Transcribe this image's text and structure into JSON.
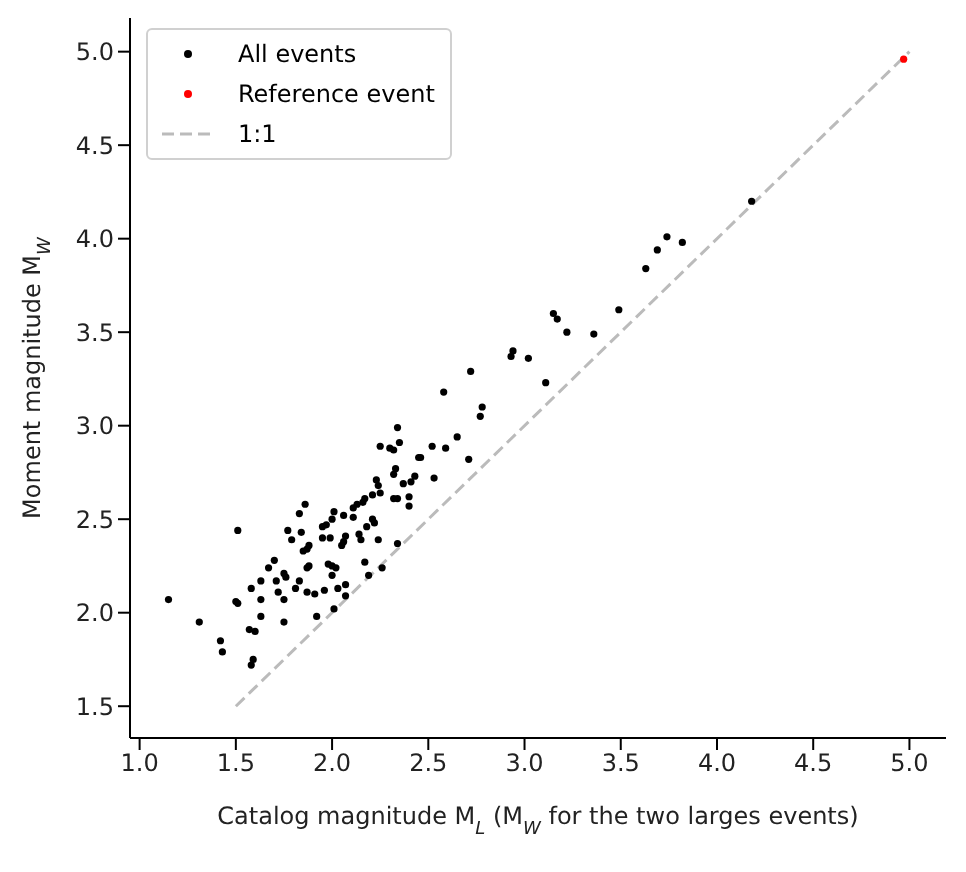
{
  "chart_data": {
    "type": "scatter",
    "xlabel": "Catalog magnitude M$_{L}$ (M$_{W}$ for the two larges events)",
    "ylabel": "Moment magnitude M$_{W}$",
    "xlim": [
      0.95,
      5.19
    ],
    "ylim": [
      1.33,
      5.18
    ],
    "xticks": [
      {
        "value": 1,
        "label": "1.0"
      },
      1.5,
      {
        "value": 2,
        "label": "2.0"
      },
      2.5,
      {
        "value": 3,
        "label": "3.0"
      },
      3.5,
      {
        "value": 4,
        "label": "4.0"
      },
      4.5,
      {
        "value": 5,
        "label": "5.0"
      }
    ],
    "yticks": [
      1.5,
      {
        "value": 2,
        "label": "2.0"
      },
      2.5,
      {
        "value": 3,
        "label": "3.0"
      },
      3.5,
      {
        "value": 4,
        "label": "4.0"
      },
      4.5,
      {
        "value": 5,
        "label": "5.0"
      }
    ],
    "legend": "top left",
    "marker": "circle",
    "series": [
      {
        "name": "All events",
        "color": "#000000",
        "x": [
          1.15,
          1.31,
          1.42,
          1.43,
          1.51,
          1.5,
          1.51,
          1.58,
          1.57,
          1.6,
          1.58,
          1.59,
          1.63,
          1.63,
          1.63,
          1.67,
          1.7,
          1.71,
          1.72,
          1.75,
          1.76,
          1.75,
          1.75,
          1.77,
          1.79,
          1.81,
          1.83,
          1.86,
          1.84,
          1.85,
          1.87,
          1.83,
          1.87,
          1.87,
          1.88,
          1.88,
          1.91,
          1.92,
          1.95,
          1.97,
          1.95,
          1.99,
          1.96,
          1.98,
          2.0,
          2.02,
          2.0,
          2.01,
          2.0,
          2.03,
          2.01,
          2.05,
          2.06,
          2.06,
          2.07,
          2.07,
          2.07,
          2.11,
          2.11,
          2.13,
          2.14,
          2.15,
          2.16,
          2.17,
          2.18,
          2.17,
          2.19,
          2.21,
          2.22,
          2.21,
          2.23,
          2.24,
          2.24,
          2.25,
          2.3,
          2.25,
          2.26,
          2.32,
          2.34,
          2.32,
          2.33,
          2.34,
          2.35,
          2.34,
          2.32,
          2.37,
          2.4,
          2.4,
          2.41,
          2.43,
          2.45,
          2.46,
          2.52,
          2.53,
          2.58,
          2.59,
          2.65,
          2.71,
          2.72,
          2.77,
          2.78,
          2.93,
          2.94,
          3.02,
          3.11,
          3.15,
          3.17,
          3.22,
          3.36,
          3.49,
          3.63,
          3.69,
          3.74,
          3.82,
          4.18
        ],
        "values": [
          2.07,
          1.95,
          1.85,
          1.79,
          2.44,
          2.06,
          2.05,
          2.13,
          1.91,
          1.9,
          1.72,
          1.75,
          2.17,
          2.07,
          1.98,
          2.24,
          2.28,
          2.17,
          2.11,
          2.21,
          2.19,
          1.95,
          2.07,
          2.44,
          2.39,
          2.13,
          2.53,
          2.58,
          2.43,
          2.33,
          2.34,
          2.17,
          2.11,
          2.24,
          2.25,
          2.36,
          2.1,
          1.98,
          2.46,
          2.47,
          2.4,
          2.4,
          2.12,
          2.26,
          2.25,
          2.24,
          2.5,
          2.54,
          2.2,
          2.13,
          2.02,
          2.36,
          2.38,
          2.52,
          2.09,
          2.15,
          2.41,
          2.51,
          2.56,
          2.58,
          2.42,
          2.39,
          2.59,
          2.61,
          2.46,
          2.27,
          2.2,
          2.5,
          2.48,
          2.63,
          2.71,
          2.68,
          2.39,
          2.89,
          2.88,
          2.64,
          2.24,
          2.61,
          2.61,
          2.74,
          2.77,
          2.99,
          2.91,
          2.37,
          2.87,
          2.69,
          2.62,
          2.57,
          2.7,
          2.73,
          2.83,
          2.83,
          2.89,
          2.72,
          3.18,
          2.88,
          2.94,
          2.82,
          3.29,
          3.05,
          3.1,
          3.37,
          3.4,
          3.36,
          3.23,
          3.6,
          3.57,
          3.5,
          3.49,
          3.62,
          3.84,
          3.94,
          4.01,
          3.98,
          4.2
        ]
      },
      {
        "name": "Reference event",
        "color": "#ff0000",
        "x": [
          4.97
        ],
        "values": [
          4.96
        ]
      },
      {
        "name": "1:1",
        "type": "line",
        "marker": "none",
        "color": "#bbbbbb",
        "line_style": "dashed",
        "x": [
          1.5,
          5.0
        ],
        "values": [
          1.5,
          5.0
        ]
      }
    ]
  }
}
